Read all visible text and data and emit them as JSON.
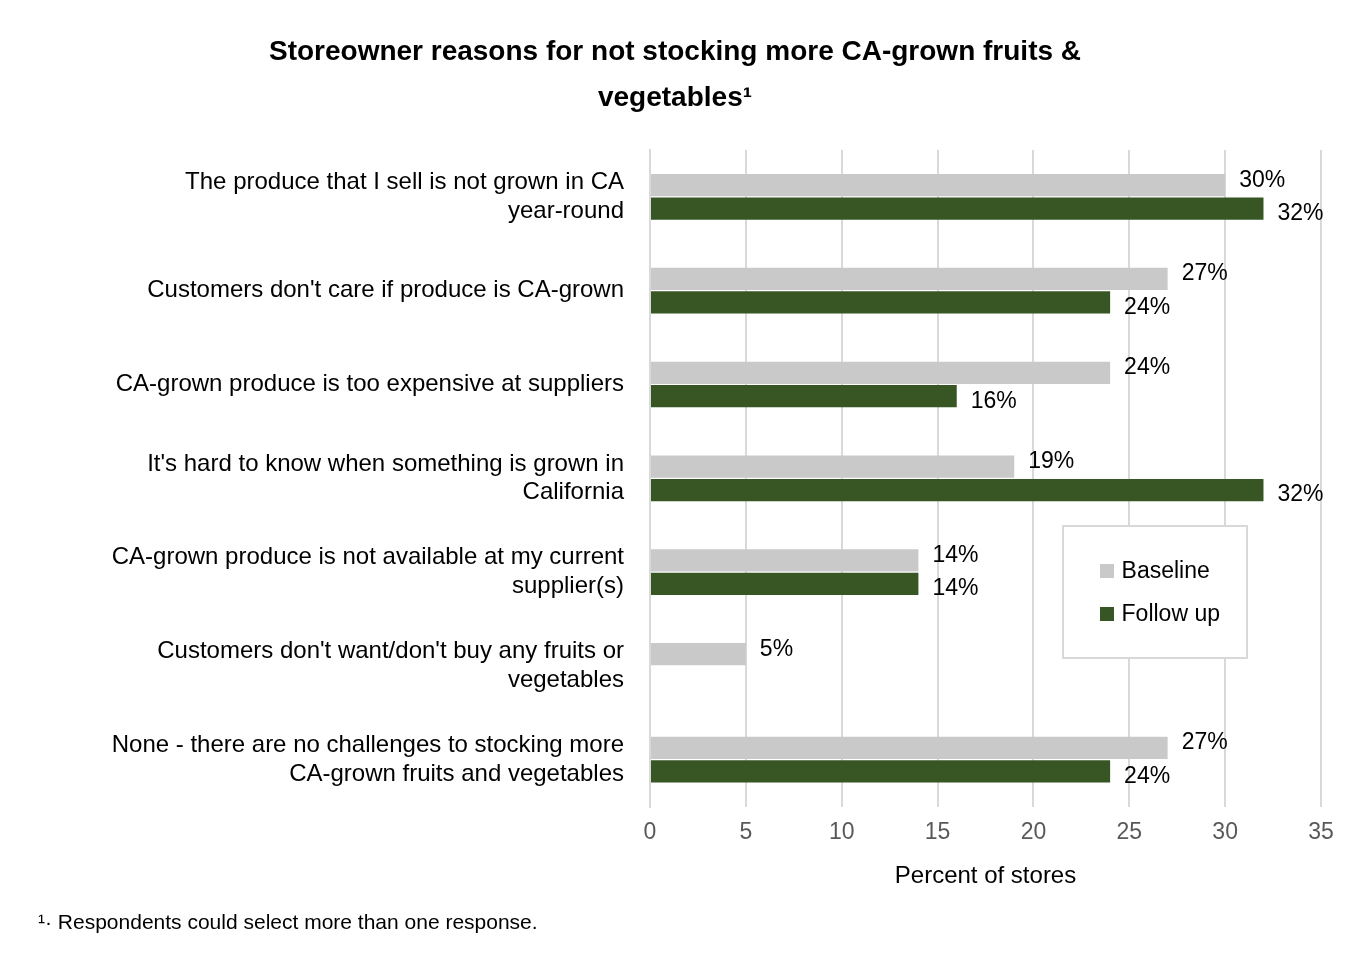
{
  "chart_data": {
    "type": "bar",
    "orientation": "horizontal",
    "title": "Storeowner reasons for not stocking more CA-grown fruits & vegetables¹",
    "xlabel": "Percent of stores",
    "categories": [
      "The produce that I sell is not grown in CA year-round",
      "Customers don't care if produce is CA-grown",
      "CA-grown produce is too expensive at suppliers",
      "It's hard to know when something is grown in California",
      "CA-grown produce is not available at my current supplier(s)",
      "Customers don't want/don't buy any fruits or vegetables",
      "None - there are no challenges to stocking more CA-grown fruits and vegetables"
    ],
    "series": [
      {
        "name": "Baseline",
        "color": "#c9c9c9",
        "values": [
          30,
          27,
          24,
          19,
          14,
          5,
          27
        ],
        "value_labels": [
          "30%",
          "27%",
          "24%",
          "19%",
          "14%",
          "5%",
          "27%"
        ]
      },
      {
        "name": "Follow up",
        "color": "#375623",
        "values": [
          32,
          24,
          16,
          32,
          14,
          null,
          24
        ],
        "value_labels": [
          "32%",
          "24%",
          "16%",
          "32%",
          "14%",
          null,
          "24%"
        ]
      }
    ],
    "xlim": [
      0,
      35
    ],
    "xticks": [
      0,
      5,
      10,
      15,
      20,
      25,
      30,
      35
    ],
    "grid": "x",
    "legend": "right",
    "annotations": [
      "¹· Respondents could select more than one response."
    ]
  }
}
